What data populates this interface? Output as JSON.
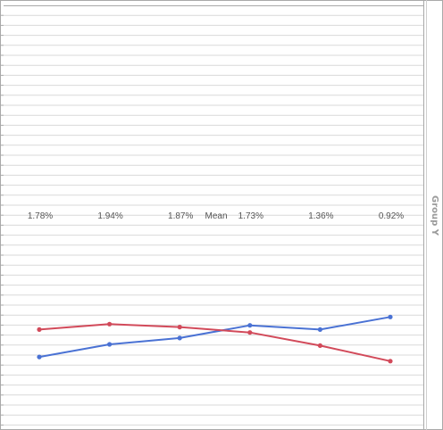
{
  "chart_data": {
    "type": "line",
    "group_label": "Group Y",
    "row_label": "Mean",
    "x": [
      1,
      2,
      3,
      4,
      5,
      6
    ],
    "mean_labels": [
      "1.78%",
      "1.94%",
      "1.87%",
      "1.73%",
      "1.36%",
      "0.92%"
    ],
    "ylim": [
      0,
      100
    ],
    "grid": true,
    "series": [
      {
        "color": "#4a72d4",
        "values": [
          16.5,
          19.5,
          21,
          24,
          23,
          26
        ]
      },
      {
        "color": "#d24a5a",
        "values": [
          23,
          24.3,
          23.6,
          22.3,
          19.2,
          15.5
        ]
      }
    ]
  }
}
